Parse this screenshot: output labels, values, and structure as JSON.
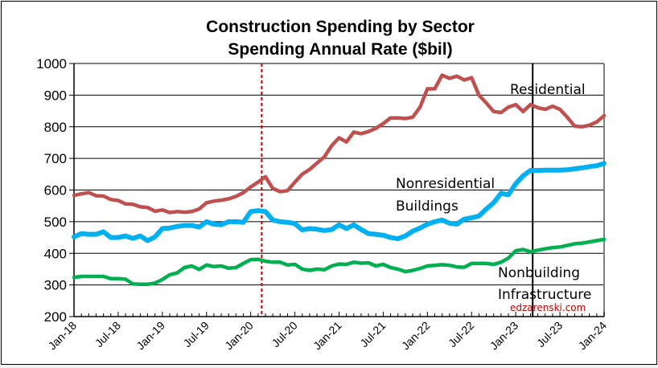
{
  "chart_data": {
    "type": "line",
    "title": "Construction Spending by Sector",
    "subtitle": "Spending Annual Rate ($bil)",
    "xlabel": "",
    "ylabel": "",
    "ylim": [
      200,
      1000
    ],
    "yticks": [
      200,
      300,
      400,
      500,
      600,
      700,
      800,
      900,
      1000
    ],
    "x_start": "Jan-18",
    "x_end": "Jan-24",
    "xtick_labels": [
      "Jan-18",
      "Jul-18",
      "Jan-19",
      "Jul-19",
      "Jan-20",
      "Jul-20",
      "Jan-21",
      "Jul-21",
      "Jan-22",
      "Jul-22",
      "Jan-23",
      "Jul-23",
      "Jan-24"
    ],
    "grid": true,
    "frequency": "monthly",
    "vertical_markers": [
      {
        "name": "covid-start",
        "month_index": 25.5,
        "style": "dashed",
        "color": "#c00000"
      },
      {
        "name": "forecast-start",
        "month_index": 62.3,
        "style": "solid",
        "color": "#000000"
      }
    ],
    "series": [
      {
        "name": "Residential",
        "color": "#c0504d",
        "values": [
          583,
          588,
          592,
          582,
          581,
          570,
          567,
          556,
          555,
          547,
          545,
          533,
          537,
          529,
          532,
          530,
          532,
          540,
          560,
          565,
          568,
          572,
          580,
          592,
          610,
          625,
          642,
          605,
          595,
          598,
          625,
          650,
          665,
          685,
          705,
          740,
          765,
          752,
          783,
          778,
          785,
          795,
          810,
          828,
          828,
          826,
          830,
          862,
          920,
          920,
          963,
          953,
          960,
          948,
          955,
          900,
          875,
          848,
          845,
          862,
          870,
          848,
          870,
          860,
          855,
          865,
          855,
          830,
          802,
          800,
          805,
          815,
          835
        ]
      },
      {
        "name": "Nonresidential Buildings",
        "color": "#00b0f0",
        "values": [
          452,
          462,
          460,
          460,
          468,
          450,
          450,
          455,
          447,
          455,
          440,
          452,
          478,
          480,
          485,
          488,
          488,
          483,
          500,
          492,
          490,
          500,
          500,
          498,
          532,
          535,
          532,
          505,
          500,
          498,
          494,
          474,
          478,
          476,
          472,
          475,
          490,
          478,
          490,
          475,
          462,
          460,
          457,
          450,
          446,
          455,
          470,
          480,
          492,
          500,
          505,
          495,
          492,
          508,
          512,
          518,
          540,
          560,
          590,
          585,
          620,
          645,
          662,
          662,
          663,
          663,
          663,
          664,
          667,
          670,
          674,
          677,
          684
        ]
      },
      {
        "name": "Nonbuilding Infrastructure",
        "color": "#00b050",
        "values": [
          324,
          327,
          327,
          327,
          327,
          320,
          320,
          318,
          303,
          302,
          302,
          306,
          317,
          332,
          338,
          355,
          360,
          349,
          363,
          358,
          360,
          353,
          355,
          368,
          380,
          381,
          375,
          372,
          372,
          363,
          365,
          350,
          346,
          350,
          348,
          360,
          366,
          365,
          372,
          369,
          370,
          360,
          365,
          355,
          350,
          342,
          346,
          352,
          360,
          362,
          364,
          362,
          357,
          356,
          368,
          368,
          368,
          365,
          372,
          385,
          408,
          412,
          405,
          410,
          414,
          418,
          420,
          425,
          430,
          432,
          436,
          440,
          444
        ]
      }
    ],
    "annotations": [
      {
        "text": "Residential",
        "series": "Residential"
      },
      {
        "text": "Nonresidential",
        "series": "Nonresidential Buildings"
      },
      {
        "text": "Buildings",
        "series": "Nonresidential Buildings"
      },
      {
        "text": "Nonbuilding",
        "series": "Nonbuilding Infrastructure"
      },
      {
        "text": "Infrastructure",
        "series": "Nonbuilding Infrastructure"
      }
    ],
    "credit": {
      "text": "edzarenski.com",
      "color": "#c00000"
    }
  }
}
